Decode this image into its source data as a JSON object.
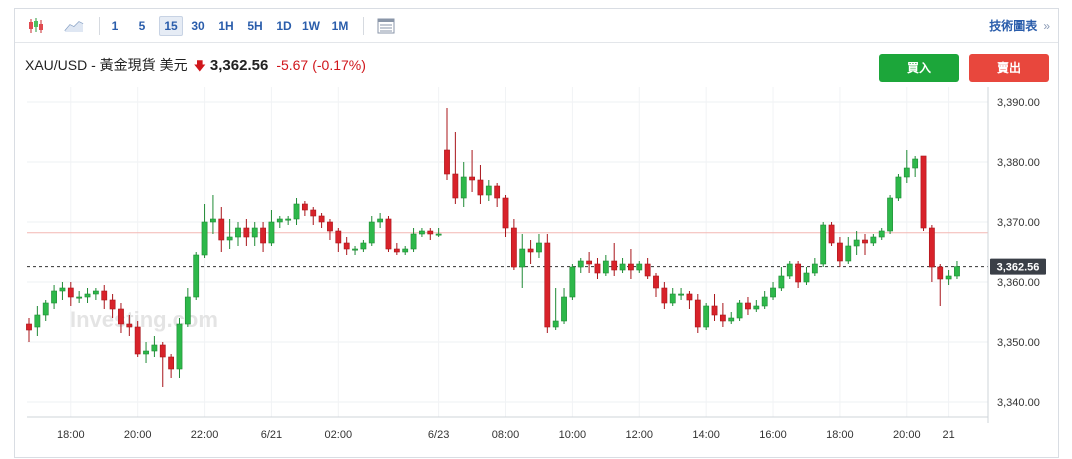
{
  "toolbar": {
    "intervals": [
      "1",
      "5",
      "15",
      "30",
      "1H",
      "5H",
      "1D",
      "1W",
      "1M"
    ],
    "active_interval": "15",
    "tech_chart_label": "技術圖表",
    "tech_chart_arrows": "»"
  },
  "quote": {
    "symbol": "XAU/USD - 黃金現貨 美元",
    "price": "3,362.56",
    "change": "-5.67",
    "change_pct": "(-0.17%)"
  },
  "buttons": {
    "buy": "買入",
    "sell": "賣出"
  },
  "watermark": "Investing.com",
  "colors": {
    "up": "#2db84a",
    "down": "#d8222a",
    "up_btn": "#1ca63a",
    "down_btn": "#e8473d",
    "link": "#2a5dab",
    "prev_close_line": "#f3b7b3"
  },
  "chart_data": {
    "type": "candlestick",
    "y_range": [
      3337.5,
      3392.5
    ],
    "y_ticks": [
      3340,
      3350,
      3360,
      3370,
      3380,
      3390
    ],
    "y_tick_labels": [
      "3,340.00",
      "3,350.00",
      "3,360.00",
      "3,370.00",
      "3,380.00",
      "3,390.00"
    ],
    "x_ticks": [
      {
        "index": 5,
        "label": "18:00"
      },
      {
        "index": 13,
        "label": "20:00"
      },
      {
        "index": 21,
        "label": "22:00"
      },
      {
        "index": 29,
        "label": "6/21"
      },
      {
        "index": 37,
        "label": "02:00"
      },
      {
        "index": 49,
        "label": "6/23"
      },
      {
        "index": 57,
        "label": "08:00"
      },
      {
        "index": 65,
        "label": "10:00"
      },
      {
        "index": 73,
        "label": "12:00"
      },
      {
        "index": 81,
        "label": "14:00"
      },
      {
        "index": 89,
        "label": "16:00"
      },
      {
        "index": 97,
        "label": "18:00"
      },
      {
        "index": 105,
        "label": "20:00"
      },
      {
        "index": 110,
        "label": "21"
      }
    ],
    "current_price": 3362.56,
    "current_price_label": "3,362.56",
    "prev_close": 3368.2,
    "candles": [
      [
        3353.0,
        3352.0,
        3350.0,
        3354.0
      ],
      [
        3352.5,
        3354.5,
        3351.0,
        3356.0
      ],
      [
        3354.5,
        3356.5,
        3353.5,
        3357.0
      ],
      [
        3356.5,
        3358.5,
        3355.5,
        3359.5
      ],
      [
        3358.5,
        3359.0,
        3357.0,
        3360.0
      ],
      [
        3359.0,
        3357.5,
        3356.0,
        3360.0
      ],
      [
        3357.5,
        3357.5,
        3356.5,
        3358.5
      ],
      [
        3357.5,
        3358.0,
        3356.5,
        3359.0
      ],
      [
        3358.0,
        3358.5,
        3357.0,
        3359.0
      ],
      [
        3358.5,
        3357.0,
        3355.5,
        3359.5
      ],
      [
        3357.0,
        3355.5,
        3354.0,
        3358.0
      ],
      [
        3355.5,
        3353.0,
        3351.5,
        3356.5
      ],
      [
        3353.0,
        3352.5,
        3351.0,
        3354.5
      ],
      [
        3352.5,
        3348.0,
        3347.5,
        3353.5
      ],
      [
        3348.0,
        3348.5,
        3346.5,
        3350.0
      ],
      [
        3348.5,
        3349.5,
        3347.5,
        3351.0
      ],
      [
        3349.5,
        3347.5,
        3342.5,
        3350.0
      ],
      [
        3347.5,
        3345.5,
        3344.0,
        3348.0
      ],
      [
        3345.5,
        3353.0,
        3344.0,
        3354.0
      ],
      [
        3353.0,
        3357.5,
        3352.5,
        3359.0
      ],
      [
        3357.5,
        3364.5,
        3357.0,
        3365.0
      ],
      [
        3364.5,
        3370.0,
        3364.0,
        3373.0
      ],
      [
        3370.0,
        3370.5,
        3368.0,
        3374.5
      ],
      [
        3370.5,
        3367.0,
        3365.0,
        3372.5
      ],
      [
        3367.0,
        3367.5,
        3365.5,
        3370.5
      ],
      [
        3367.5,
        3369.0,
        3366.0,
        3370.0
      ],
      [
        3369.0,
        3367.5,
        3366.0,
        3370.5
      ],
      [
        3367.5,
        3369.0,
        3366.0,
        3370.0
      ],
      [
        3369.0,
        3366.5,
        3365.0,
        3370.0
      ],
      [
        3366.5,
        3370.0,
        3366.0,
        3372.0
      ],
      [
        3370.0,
        3370.5,
        3369.0,
        3371.0
      ],
      [
        3370.5,
        3370.5,
        3369.5,
        3371.0
      ],
      [
        3370.5,
        3373.0,
        3369.5,
        3374.0
      ],
      [
        3373.0,
        3372.0,
        3371.0,
        3373.5
      ],
      [
        3372.0,
        3371.0,
        3369.5,
        3372.5
      ],
      [
        3371.0,
        3370.0,
        3369.0,
        3371.5
      ],
      [
        3370.0,
        3368.5,
        3367.0,
        3370.5
      ],
      [
        3368.5,
        3366.5,
        3365.0,
        3369.0
      ],
      [
        3366.5,
        3365.5,
        3364.5,
        3367.5
      ],
      [
        3365.5,
        3365.5,
        3364.5,
        3366.0
      ],
      [
        3365.5,
        3366.5,
        3365.0,
        3367.0
      ],
      [
        3366.5,
        3370.0,
        3366.0,
        3371.0
      ],
      [
        3370.0,
        3370.5,
        3369.0,
        3371.5
      ],
      [
        3370.5,
        3365.5,
        3365.0,
        3371.0
      ],
      [
        3365.5,
        3365.0,
        3364.5,
        3366.5
      ],
      [
        3365.0,
        3365.5,
        3364.5,
        3366.0
      ],
      [
        3365.5,
        3368.0,
        3365.0,
        3369.0
      ],
      [
        3368.0,
        3368.5,
        3367.5,
        3369.0
      ],
      [
        3368.5,
        3368.0,
        3367.0,
        3369.0
      ],
      [
        3368.0,
        3368.0,
        3367.5,
        3369.0
      ],
      [
        3382.0,
        3378.0,
        3377.0,
        3389.0
      ],
      [
        3378.0,
        3374.0,
        3373.0,
        3385.0
      ],
      [
        3374.0,
        3377.5,
        3372.5,
        3380.0
      ],
      [
        3377.5,
        3377.0,
        3375.0,
        3382.0
      ],
      [
        3377.0,
        3374.5,
        3373.0,
        3379.5
      ],
      [
        3374.5,
        3376.0,
        3373.5,
        3377.0
      ],
      [
        3376.0,
        3374.0,
        3372.5,
        3376.5
      ],
      [
        3374.0,
        3369.0,
        3367.5,
        3374.5
      ],
      [
        3369.0,
        3362.5,
        3362.0,
        3370.5
      ],
      [
        3362.5,
        3365.5,
        3359.0,
        3368.0
      ],
      [
        3365.5,
        3365.0,
        3363.0,
        3367.0
      ],
      [
        3365.0,
        3366.5,
        3364.0,
        3368.0
      ],
      [
        3366.5,
        3352.5,
        3351.5,
        3368.0
      ],
      [
        3352.5,
        3353.5,
        3352.0,
        3359.0
      ],
      [
        3353.5,
        3357.5,
        3353.0,
        3359.0
      ],
      [
        3357.5,
        3362.5,
        3357.0,
        3363.0
      ],
      [
        3362.5,
        3363.5,
        3361.5,
        3364.0
      ],
      [
        3363.5,
        3363.0,
        3361.5,
        3365.0
      ],
      [
        3363.0,
        3361.5,
        3360.5,
        3364.0
      ],
      [
        3361.5,
        3363.5,
        3361.0,
        3364.5
      ],
      [
        3363.5,
        3362.0,
        3361.0,
        3366.5
      ],
      [
        3362.0,
        3363.0,
        3361.5,
        3364.0
      ],
      [
        3363.0,
        3362.0,
        3360.5,
        3365.5
      ],
      [
        3362.0,
        3363.0,
        3361.5,
        3363.5
      ],
      [
        3363.0,
        3361.0,
        3360.5,
        3364.0
      ],
      [
        3361.0,
        3359.0,
        3357.5,
        3361.5
      ],
      [
        3359.0,
        3356.5,
        3355.5,
        3360.0
      ],
      [
        3356.5,
        3358.0,
        3356.0,
        3359.0
      ],
      [
        3358.0,
        3358.0,
        3357.0,
        3359.0
      ],
      [
        3358.0,
        3357.0,
        3355.5,
        3358.5
      ],
      [
        3357.0,
        3352.5,
        3351.5,
        3358.0
      ],
      [
        3352.5,
        3356.0,
        3352.0,
        3356.5
      ],
      [
        3356.0,
        3354.5,
        3353.5,
        3358.0
      ],
      [
        3354.5,
        3353.5,
        3352.5,
        3356.5
      ],
      [
        3353.5,
        3354.0,
        3353.0,
        3355.0
      ],
      [
        3354.0,
        3356.5,
        3353.5,
        3357.0
      ],
      [
        3356.5,
        3355.5,
        3354.5,
        3357.5
      ],
      [
        3355.5,
        3356.0,
        3355.0,
        3357.0
      ],
      [
        3356.0,
        3357.5,
        3355.5,
        3358.5
      ],
      [
        3357.5,
        3359.0,
        3357.0,
        3360.0
      ],
      [
        3359.0,
        3361.0,
        3358.5,
        3362.5
      ],
      [
        3361.0,
        3363.0,
        3360.5,
        3363.5
      ],
      [
        3363.0,
        3360.0,
        3359.0,
        3363.5
      ],
      [
        3360.0,
        3361.5,
        3359.5,
        3362.5
      ],
      [
        3361.5,
        3363.0,
        3361.0,
        3364.0
      ],
      [
        3363.0,
        3369.5,
        3362.5,
        3370.0
      ],
      [
        3369.5,
        3366.5,
        3366.0,
        3370.0
      ],
      [
        3366.5,
        3363.5,
        3362.5,
        3367.5
      ],
      [
        3363.5,
        3366.0,
        3363.0,
        3367.5
      ],
      [
        3366.0,
        3367.0,
        3364.5,
        3368.5
      ],
      [
        3367.0,
        3366.5,
        3364.5,
        3368.0
      ],
      [
        3366.5,
        3367.5,
        3366.0,
        3368.0
      ],
      [
        3367.5,
        3368.5,
        3367.0,
        3369.0
      ],
      [
        3368.5,
        3374.0,
        3368.0,
        3374.5
      ],
      [
        3374.0,
        3377.5,
        3373.5,
        3378.0
      ],
      [
        3377.5,
        3379.0,
        3376.5,
        3382.0
      ],
      [
        3379.0,
        3380.5,
        3377.5,
        3381.0
      ],
      [
        3381.0,
        3369.0,
        3368.5,
        3381.0
      ],
      [
        3369.0,
        3362.5,
        3360.0,
        3369.5
      ],
      [
        3362.5,
        3360.5,
        3356.0,
        3363.0
      ],
      [
        3360.5,
        3361.0,
        3359.5,
        3362.0
      ],
      [
        3361.0,
        3362.56,
        3360.5,
        3363.5
      ]
    ]
  }
}
